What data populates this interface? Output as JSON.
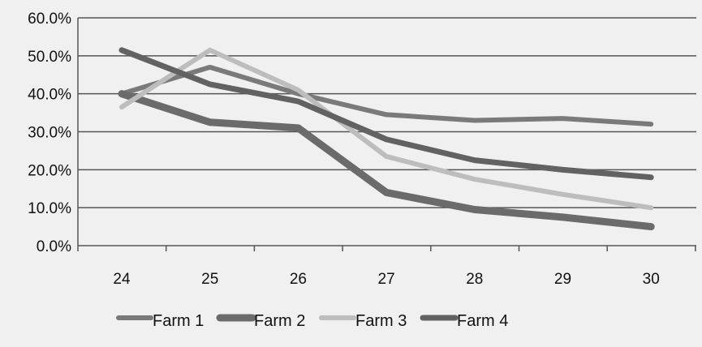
{
  "chart_data": {
    "type": "line",
    "x": [
      24,
      25,
      26,
      27,
      28,
      29,
      30
    ],
    "ylim": [
      0,
      60
    ],
    "yticks": [
      "0.0%",
      "10.0%",
      "20.0%",
      "30.0%",
      "40.0%",
      "50.0%",
      "60.0%"
    ],
    "grid": true,
    "legend_position": "bottom",
    "series": [
      {
        "name": "Farm 1",
        "color": "#7a7a7a",
        "values": [
          40,
          47,
          40,
          34.5,
          33,
          33.5,
          32
        ]
      },
      {
        "name": "Farm 2",
        "color": "#6b6b6b",
        "values": [
          40,
          32.5,
          31,
          14,
          9.5,
          7.5,
          5
        ]
      },
      {
        "name": "Farm 3",
        "color": "#bdbdbd",
        "values": [
          36.5,
          51.5,
          41,
          23.5,
          17.5,
          13.5,
          10
        ]
      },
      {
        "name": "Farm 4",
        "color": "#626262",
        "values": [
          51.5,
          42.5,
          38,
          28,
          22.5,
          20,
          18
        ]
      }
    ]
  }
}
